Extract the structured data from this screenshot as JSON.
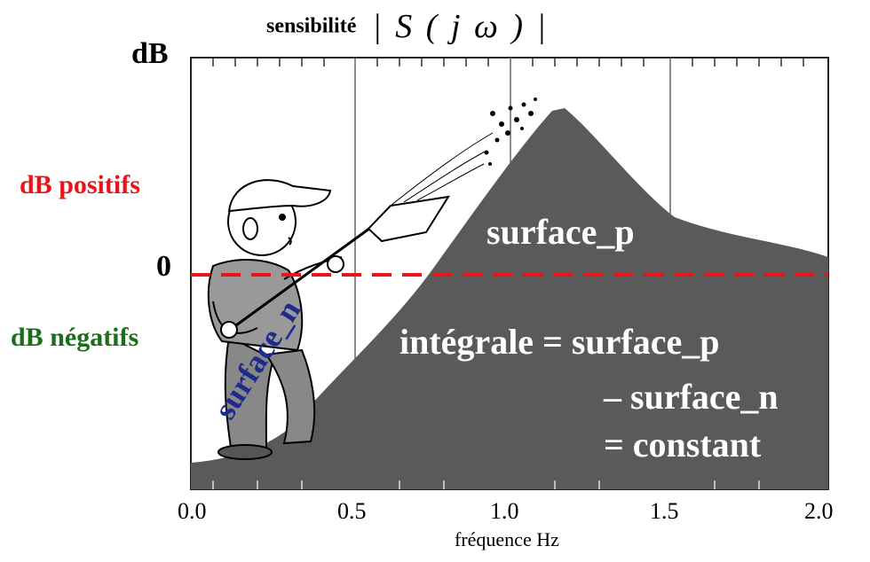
{
  "title": {
    "word": "sensibilité",
    "formula": "| S ( j ω ) |"
  },
  "y_axis": {
    "unit": "dB",
    "positive": "dB positifs",
    "zero": "0",
    "negative": "dB négatifs"
  },
  "x_axis": {
    "ticks": [
      "0.0",
      "0.5",
      "1.0",
      "1.5",
      "2.0"
    ],
    "label": "fréquence  Hz"
  },
  "annotations": {
    "surface_p": "surface_p",
    "surface_n": "surface_n",
    "integral_line1": "intégrale = surface_p",
    "integral_line2": "– surface_n",
    "integral_line3": "= constant"
  },
  "colors": {
    "fill": "#5a5a5a",
    "zero_line": "#e8141a",
    "positive": "#e8141a",
    "negative": "#1a6e1a",
    "surface_n": "#1e2a8c"
  },
  "illustration": "worker-shoveling-dirt"
}
